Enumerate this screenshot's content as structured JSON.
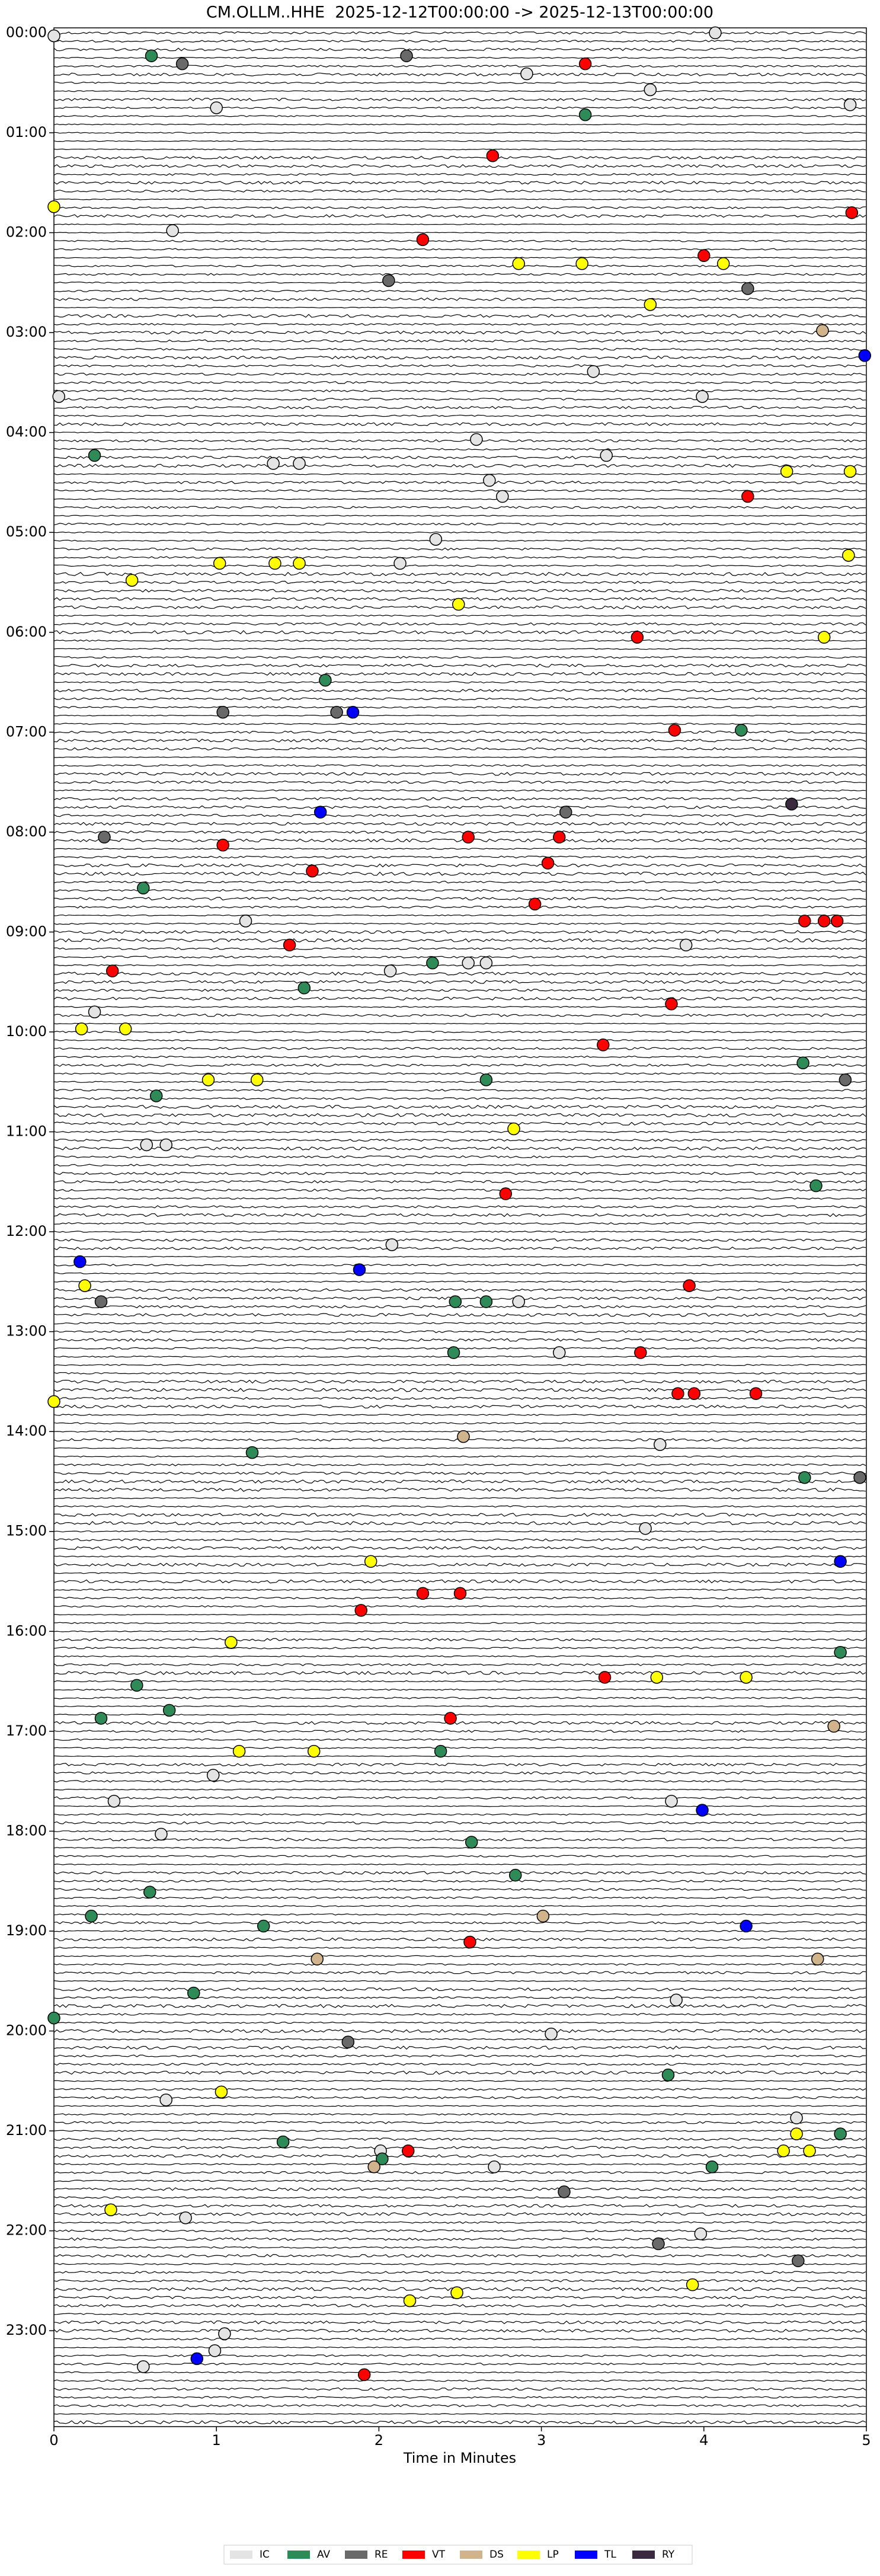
{
  "chart_data": {
    "type": "dayplot",
    "title": "CM.OLLM..HHE  2025-12-12T00:00:00 -> 2025-12-13T00:00:00",
    "xlabel": "Time in Minutes",
    "xlim": [
      0,
      5
    ],
    "xticks": [
      0,
      1,
      2,
      3,
      4,
      5
    ],
    "ylim": [
      -0.05,
      23.96
    ],
    "yticks": [
      {
        "value": 0,
        "label": "00:00"
      },
      {
        "value": 1,
        "label": "01:00"
      },
      {
        "value": 2,
        "label": "02:00"
      },
      {
        "value": 3,
        "label": "03:00"
      },
      {
        "value": 4,
        "label": "04:00"
      },
      {
        "value": 5,
        "label": "05:00"
      },
      {
        "value": 6,
        "label": "06:00"
      },
      {
        "value": 7,
        "label": "07:00"
      },
      {
        "value": 8,
        "label": "08:00"
      },
      {
        "value": 9,
        "label": "09:00"
      },
      {
        "value": 10,
        "label": "10:00"
      },
      {
        "value": 11,
        "label": "11:00"
      },
      {
        "value": 12,
        "label": "12:00"
      },
      {
        "value": 13,
        "label": "13:00"
      },
      {
        "value": 14,
        "label": "14:00"
      },
      {
        "value": 15,
        "label": "15:00"
      },
      {
        "value": 16,
        "label": "16:00"
      },
      {
        "value": 17,
        "label": "17:00"
      },
      {
        "value": 18,
        "label": "18:00"
      },
      {
        "value": 19,
        "label": "19:00"
      },
      {
        "value": 20,
        "label": "20:00"
      },
      {
        "value": 21,
        "label": "21:00"
      },
      {
        "value": 22,
        "label": "22:00"
      },
      {
        "value": 23,
        "label": "23:00"
      }
    ],
    "series": [
      {
        "name": "IC",
        "color": "#e4e4e4",
        "x": [
          0,
          4.07,
          1.0,
          4.9,
          0.73,
          2.6,
          3.4,
          1.35,
          1.51,
          2.68,
          2.76,
          2.35,
          2.13,
          3.32,
          3.99,
          0.03,
          2.91,
          3.67,
          1.18,
          2.07,
          2.55,
          2.66,
          3.89,
          0.25,
          0.57,
          0.69,
          2.08,
          2.86,
          3.11,
          3.73,
          3.64,
          3.8,
          0.37,
          0.66,
          0.98,
          3.83,
          3.06,
          0.69,
          4.57,
          2.01,
          2.71,
          0.81,
          3.98,
          0.55,
          1.05,
          0.99
        ],
        "y": [
          0.03,
          0,
          0.75,
          0.72,
          1.98,
          4.07,
          4.23,
          4.31,
          4.31,
          4.48,
          4.64,
          5.07,
          5.31,
          3.39,
          3.64,
          3.64,
          0.41,
          0.57,
          8.89,
          9.39,
          9.31,
          9.31,
          9.13,
          9.8,
          11.13,
          11.13,
          12.13,
          12.7,
          13.21,
          14.13,
          14.97,
          17.7,
          17.7,
          18.03,
          17.44,
          19.69,
          20.03,
          20.69,
          20.87,
          21.2,
          21.36,
          21.87,
          22.03,
          23.36,
          23.03,
          23.2
        ]
      },
      {
        "name": "AV",
        "color": "#2e8b57",
        "x": [
          0.6,
          3.27,
          0.25,
          1.67,
          4.23,
          0.55,
          2.33,
          1.54,
          4.61,
          2.66,
          0.63,
          4.69,
          2.47,
          2.66,
          2.46,
          1.22,
          4.62,
          4.84,
          0.51,
          0.29,
          0.71,
          2.38,
          2.57,
          0.59,
          2.84,
          0.23,
          1.29,
          0.86,
          0,
          3.78,
          1.41,
          4.84,
          2.02,
          4.05
        ],
        "y": [
          0.23,
          0.82,
          4.23,
          6.48,
          6.98,
          8.56,
          9.31,
          9.56,
          10.31,
          10.48,
          10.64,
          11.54,
          12.7,
          12.7,
          13.21,
          14.21,
          14.46,
          16.21,
          16.54,
          16.87,
          16.79,
          17.2,
          18.11,
          18.61,
          18.44,
          18.85,
          18.95,
          19.62,
          19.87,
          20.44,
          21.11,
          21.03,
          21.28,
          21.36
        ]
      },
      {
        "name": "RE",
        "color": "#696969",
        "x": [
          0.79,
          2.17,
          2.06,
          4.27,
          1.04,
          1.74,
          3.15,
          0.31,
          4.87,
          0.29,
          4.96,
          1.81,
          3.14,
          3.72,
          4.58
        ],
        "y": [
          0.31,
          0.23,
          2.48,
          2.56,
          6.8,
          6.8,
          7.8,
          8.05,
          10.48,
          12.7,
          14.46,
          20.11,
          21.61,
          22.13,
          22.3
        ]
      },
      {
        "name": "VT",
        "color": "#ff0000",
        "x": [
          3.27,
          2.7,
          4.91,
          2.27,
          4.0,
          4.27,
          3.59,
          3.82,
          1.04,
          2.55,
          3.11,
          3.04,
          1.59,
          2.96,
          1.45,
          4.62,
          4.74,
          4.82,
          0.36,
          3.8,
          3.38,
          2.78,
          3.91,
          3.61,
          3.84,
          3.94,
          4.32,
          2.27,
          2.5,
          1.89,
          3.39,
          2.44,
          2.56,
          2.18,
          1.91
        ],
        "y": [
          0.31,
          1.23,
          1.8,
          2.07,
          2.23,
          4.64,
          6.05,
          6.98,
          8.13,
          8.05,
          8.05,
          8.31,
          8.39,
          8.72,
          9.13,
          8.89,
          8.89,
          8.89,
          9.39,
          9.72,
          10.13,
          11.62,
          12.54,
          13.21,
          13.62,
          13.62,
          13.62,
          15.62,
          15.62,
          15.79,
          16.46,
          16.87,
          19.11,
          21.2,
          23.44
        ]
      },
      {
        "name": "DS",
        "color": "#d2b48c",
        "x": [
          4.73,
          2.52,
          4.8,
          1.62,
          3.01,
          4.7,
          1.97
        ],
        "y": [
          2.98,
          14.05,
          16.95,
          19.28,
          18.85,
          19.28,
          21.36
        ]
      },
      {
        "name": "LP",
        "color": "#ffff00",
        "x": [
          0,
          2.86,
          3.25,
          4.12,
          3.67,
          4.51,
          4.9,
          0.48,
          1.02,
          1.36,
          1.51,
          4.89,
          2.49,
          4.74,
          0.17,
          0.44,
          0.95,
          1.25,
          2.83,
          0.19,
          0,
          1.95,
          1.09,
          3.71,
          4.26,
          1.14,
          1.6,
          1.03,
          4.57,
          4.49,
          4.65,
          0.35,
          3.93,
          2.48,
          2.19
        ],
        "y": [
          1.74,
          2.31,
          2.31,
          2.31,
          2.72,
          4.39,
          4.39,
          5.48,
          5.31,
          5.31,
          5.31,
          5.23,
          5.72,
          6.05,
          9.97,
          9.97,
          10.48,
          10.48,
          10.97,
          12.54,
          13.7,
          15.3,
          16.11,
          16.46,
          16.46,
          17.2,
          17.2,
          20.61,
          21.03,
          21.2,
          21.2,
          21.79,
          22.54,
          22.62,
          22.7
        ]
      },
      {
        "name": "TL",
        "color": "#0000ff",
        "x": [
          4.99,
          1.84,
          1.64,
          0.16,
          1.88,
          4.84,
          3.99,
          4.26,
          0.88
        ],
        "y": [
          3.23,
          6.8,
          7.8,
          12.3,
          12.38,
          15.3,
          17.79,
          18.95,
          23.28
        ]
      },
      {
        "name": "RY",
        "color": "#3b2a3f",
        "x": [
          4.54
        ],
        "y": [
          7.72
        ]
      }
    ]
  }
}
